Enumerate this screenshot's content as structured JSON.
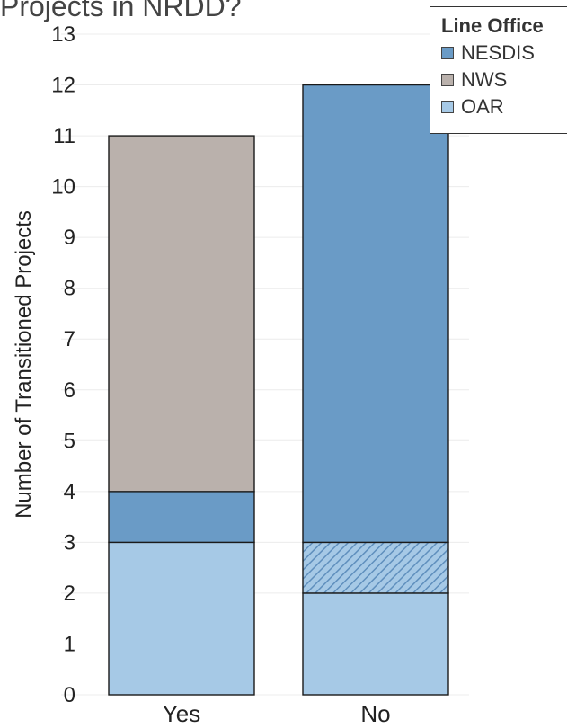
{
  "chart_data": {
    "type": "bar",
    "stacked": true,
    "title": "Projects in NRDD?",
    "ylabel": "Number of Transitioned Projects",
    "xlabel": "",
    "ylim": [
      0,
      13
    ],
    "yticks": [
      0,
      1,
      2,
      3,
      4,
      5,
      6,
      7,
      8,
      9,
      10,
      11,
      12,
      13
    ],
    "categories": [
      "Yes",
      "No"
    ],
    "legend": {
      "title": "Line Office",
      "placement": "top-right"
    },
    "series": [
      {
        "name": "OAR",
        "values": [
          3,
          2
        ],
        "color": "#a6c9e6"
      },
      {
        "name": "Hatched",
        "values": [
          0,
          1
        ],
        "color": "#a6c9e6",
        "pattern": "hatched"
      },
      {
        "name": "NESDIS",
        "values": [
          1,
          9
        ],
        "color": "#6a9bc6"
      },
      {
        "name": "NWS",
        "values": [
          7,
          0
        ],
        "color": "#bab1ac"
      }
    ],
    "legend_entries": [
      {
        "label": "NESDIS",
        "color": "#6a9bc6"
      },
      {
        "label": "NWS",
        "color": "#bab1ac"
      },
      {
        "label": "OAR",
        "color": "#a6c9e6"
      }
    ],
    "grid": true
  }
}
